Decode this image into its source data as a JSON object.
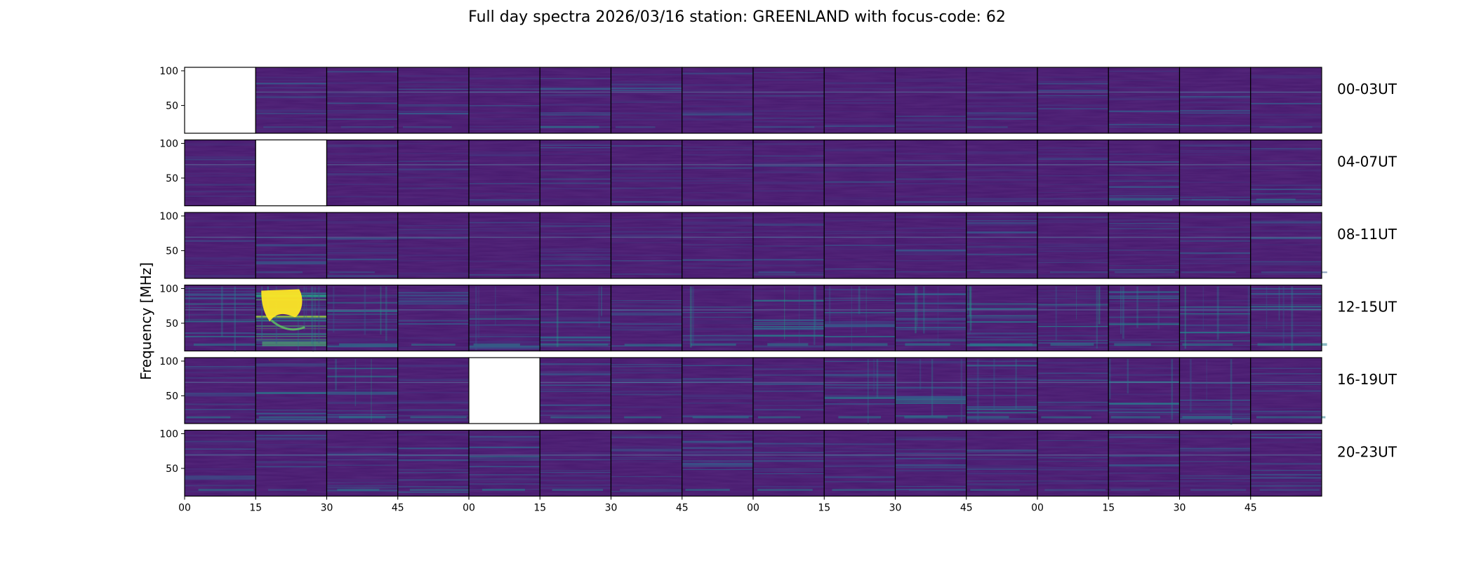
{
  "chart_data": {
    "type": "heatmap",
    "title": "Full day spectra 2026/03/16 station: GREENLAND with focus-code: 62",
    "ylabel": "Frequency [MHz]",
    "xlabel": "",
    "ylim": [
      10,
      105
    ],
    "y_ticks": [
      50,
      100
    ],
    "x_tick_labels": [
      "00",
      "15",
      "30",
      "45",
      "00",
      "15",
      "30",
      "45",
      "00",
      "15",
      "30",
      "45",
      "00",
      "15",
      "30",
      "45"
    ],
    "panels_per_row": 16,
    "colormap": "viridis",
    "rows": [
      {
        "label": "00-03UT",
        "missing_panels": [
          0
        ],
        "activity": [
          0,
          0.08,
          0.12,
          0.1,
          0.06,
          0.22,
          0.08,
          0.07,
          0.1,
          0.06,
          0.05,
          0.08,
          0.06,
          0.07,
          0.06,
          0.1
        ]
      },
      {
        "label": "04-07UT",
        "missing_panels": [
          1
        ],
        "activity": [
          0.06,
          0,
          0.05,
          0.06,
          0.05,
          0.06,
          0.05,
          0.05,
          0.05,
          0.05,
          0.05,
          0.06,
          0.06,
          0.18,
          0.1,
          0.16
        ]
      },
      {
        "label": "08-11UT",
        "missing_panels": [],
        "activity": [
          0.06,
          0.14,
          0.08,
          0.06,
          0.05,
          0.06,
          0.05,
          0.06,
          0.14,
          0.06,
          0.06,
          0.08,
          0.1,
          0.14,
          0.08,
          0.08
        ]
      },
      {
        "label": "12-15UT",
        "missing_panels": [],
        "activity": [
          0.3,
          1.0,
          0.35,
          0.2,
          0.3,
          0.3,
          0.2,
          0.3,
          0.4,
          0.4,
          0.4,
          0.4,
          0.38,
          0.4,
          0.35,
          0.4
        ]
      },
      {
        "label": "16-19UT",
        "missing_panels": [
          4
        ],
        "activity": [
          0.2,
          0.22,
          0.3,
          0.2,
          0,
          0.22,
          0.2,
          0.2,
          0.22,
          0.28,
          0.36,
          0.3,
          0.2,
          0.3,
          0.3,
          0.25
        ]
      },
      {
        "label": "20-23UT",
        "missing_panels": [],
        "activity": [
          0.22,
          0.15,
          0.2,
          0.18,
          0.25,
          0.16,
          0.15,
          0.2,
          0.18,
          0.16,
          0.15,
          0.16,
          0.14,
          0.14,
          0.14,
          0.14
        ]
      }
    ]
  }
}
